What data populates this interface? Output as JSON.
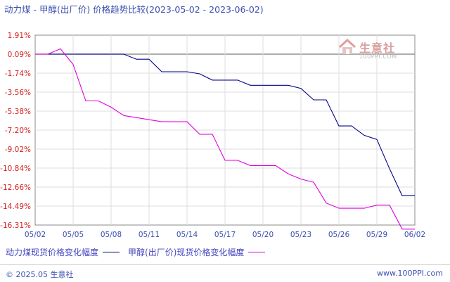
{
  "title": "动力煤 - 甲醇(出厂价) 价格趋势比较(2023-05-02 - 2023-06-02)",
  "watermark": {
    "brand": "生意社",
    "sub": "100PPI.COM"
  },
  "footer": {
    "copyright": "© 2025.05 生意社",
    "site": "www.100PPI.com"
  },
  "chart_data": {
    "type": "line",
    "y_ticks": [
      "1.91%",
      "0.09%",
      "-1.74%",
      "-3.56%",
      "-5.38%",
      "-7.20%",
      "-9.02%",
      "-10.84%",
      "-12.66%",
      "-14.49%",
      "-16.31%"
    ],
    "ylim": [
      -16.31,
      1.91
    ],
    "x_ticks": [
      "05/02",
      "05/05",
      "05/08",
      "05/11",
      "05/14",
      "05/17",
      "05/20",
      "05/23",
      "05/26",
      "05/29",
      "06/02"
    ],
    "grid": true,
    "legend_position": "bottom-left",
    "series": [
      {
        "name": "动力煤现货价格变化幅度",
        "color": "#00008b",
        "values": [
          0.09,
          0.09,
          0.09,
          0.09,
          0.09,
          0.09,
          0.09,
          0.09,
          -0.4,
          -0.4,
          -1.6,
          -1.6,
          -1.6,
          -1.8,
          -2.4,
          -2.4,
          -2.4,
          -2.9,
          -2.9,
          -2.9,
          -2.9,
          -3.2,
          -4.3,
          -4.3,
          -6.8,
          -6.8,
          -7.7,
          -8.1,
          -10.9,
          -13.5,
          -13.5
        ]
      },
      {
        "name": "甲醇(出厂价)现货价格变化幅度",
        "color": "#e000e0",
        "values": [
          0.09,
          0.09,
          0.6,
          -0.9,
          -4.4,
          -4.4,
          -5.0,
          -5.8,
          -6.0,
          -6.2,
          -6.4,
          -6.4,
          -6.4,
          -7.6,
          -7.6,
          -10.1,
          -10.1,
          -10.6,
          -10.6,
          -10.6,
          -11.4,
          -11.9,
          -12.2,
          -14.2,
          -14.7,
          -14.7,
          -14.7,
          -14.4,
          -14.4,
          -16.7,
          -16.7
        ]
      }
    ]
  }
}
